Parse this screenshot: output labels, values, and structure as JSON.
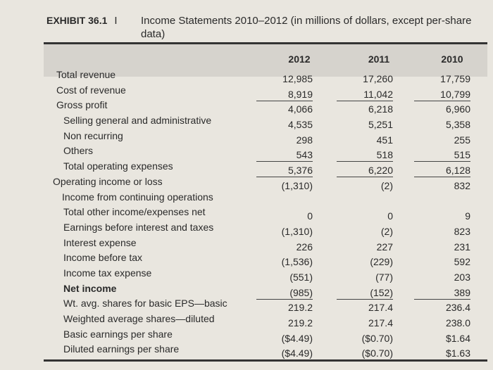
{
  "title": {
    "exhibit": "EXHIBIT 36.1",
    "separator": "I",
    "text": "Income Statements 2010–2012 (in millions of dollars, except per-share data)"
  },
  "columns": [
    "2012",
    "2011",
    "2010"
  ],
  "rows": [
    {
      "label": "Total revenue",
      "indent": 0,
      "values": [
        "12,985",
        "17,260",
        "17,759"
      ]
    },
    {
      "label": "Cost of revenue",
      "indent": 0,
      "values": [
        "8,919",
        "11,042",
        "10,799"
      ],
      "underline": true
    },
    {
      "label": "Gross profit",
      "indent": 0,
      "values": [
        "4,066",
        "6,218",
        "6,960"
      ]
    },
    {
      "label": "Selling general and administrative",
      "indent": 1,
      "values": [
        "4,535",
        "5,251",
        "5,358"
      ]
    },
    {
      "label": "Non recurring",
      "indent": 1,
      "values": [
        "298",
        "451",
        "255"
      ]
    },
    {
      "label": "Others",
      "indent": 1,
      "values": [
        "543",
        "518",
        "515"
      ],
      "underline": true
    },
    {
      "label": "Total operating expenses",
      "indent": 1,
      "values": [
        "5,376",
        "6,220",
        "6,128"
      ],
      "underline": true
    },
    {
      "label": "Operating income or loss",
      "indent": 0,
      "values": [
        "(1,310)",
        "(2)",
        "832"
      ]
    },
    {
      "label": "Income from continuing operations",
      "indent": 1,
      "values": [
        "",
        "",
        ""
      ]
    },
    {
      "label": "Total other income/expenses net",
      "indent": 1,
      "values": [
        "0",
        "0",
        "9"
      ]
    },
    {
      "label": "Earnings before interest and taxes",
      "indent": 1,
      "values": [
        "(1,310)",
        "(2)",
        "823"
      ]
    },
    {
      "label": "Interest expense",
      "indent": 1,
      "values": [
        "226",
        "227",
        "231"
      ]
    },
    {
      "label": "Income before tax",
      "indent": 1,
      "values": [
        "(1,536)",
        "(229)",
        "592"
      ]
    },
    {
      "label": "Income tax expense",
      "indent": 1,
      "values": [
        "(551)",
        "(77)",
        "203"
      ]
    },
    {
      "label": "Net income",
      "indent": 1,
      "bold": true,
      "values": [
        "(985)",
        "(152)",
        "389"
      ],
      "underline": true
    },
    {
      "label": "Wt. avg. shares for basic EPS—basic",
      "indent": 1,
      "values": [
        "219.2",
        "217.4",
        "236.4"
      ]
    },
    {
      "label": "Weighted average shares—diluted",
      "indent": 1,
      "values": [
        "219.2",
        "217.4",
        "238.0"
      ]
    },
    {
      "label": "Basic earnings per share",
      "indent": 1,
      "values": [
        "($4.49)",
        "($0.70)",
        "$1.64"
      ]
    },
    {
      "label": "Diluted earnings per share",
      "indent": 1,
      "values": [
        "($4.49)",
        "($0.70)",
        "$1.63"
      ]
    }
  ]
}
